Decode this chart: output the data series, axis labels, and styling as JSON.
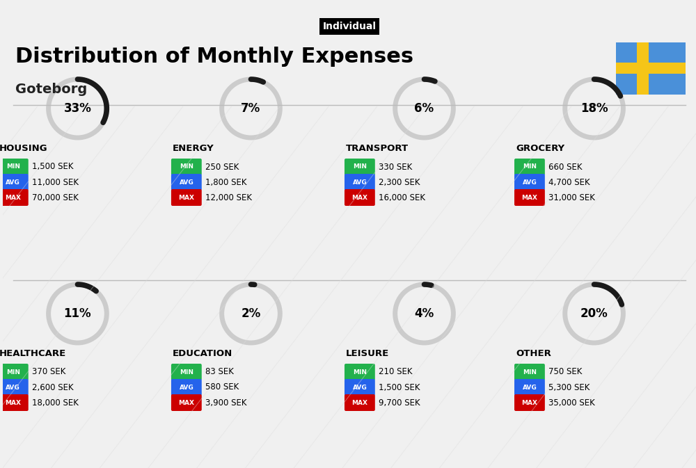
{
  "title": "Distribution of Monthly Expenses",
  "subtitle": "Goteborg",
  "tag": "Individual",
  "bg_color": "#f0f0f0",
  "categories": [
    {
      "name": "HOUSING",
      "pct": 33,
      "min_val": "1,500 SEK",
      "avg_val": "11,000 SEK",
      "max_val": "70,000 SEK",
      "row": 0,
      "col": 0
    },
    {
      "name": "ENERGY",
      "pct": 7,
      "min_val": "250 SEK",
      "avg_val": "1,800 SEK",
      "max_val": "12,000 SEK",
      "row": 0,
      "col": 1
    },
    {
      "name": "TRANSPORT",
      "pct": 6,
      "min_val": "330 SEK",
      "avg_val": "2,300 SEK",
      "max_val": "16,000 SEK",
      "row": 0,
      "col": 2
    },
    {
      "name": "GROCERY",
      "pct": 18,
      "min_val": "660 SEK",
      "avg_val": "4,700 SEK",
      "max_val": "31,000 SEK",
      "row": 0,
      "col": 3
    },
    {
      "name": "HEALTHCARE",
      "pct": 11,
      "min_val": "370 SEK",
      "avg_val": "2,600 SEK",
      "max_val": "18,000 SEK",
      "row": 1,
      "col": 0
    },
    {
      "name": "EDUCATION",
      "pct": 2,
      "min_val": "83 SEK",
      "avg_val": "580 SEK",
      "max_val": "3,900 SEK",
      "row": 1,
      "col": 1
    },
    {
      "name": "LEISURE",
      "pct": 4,
      "min_val": "210 SEK",
      "avg_val": "1,500 SEK",
      "max_val": "9,700 SEK",
      "row": 1,
      "col": 2
    },
    {
      "name": "OTHER",
      "pct": 20,
      "min_val": "750 SEK",
      "avg_val": "5,300 SEK",
      "max_val": "35,000 SEK",
      "row": 1,
      "col": 3
    }
  ],
  "min_color": "#22b14c",
  "avg_color": "#2563eb",
  "max_color": "#cc0000",
  "label_color": "#ffffff",
  "text_color": "#111111",
  "arc_color_filled": "#1a1a1a",
  "arc_color_bg": "#cccccc"
}
